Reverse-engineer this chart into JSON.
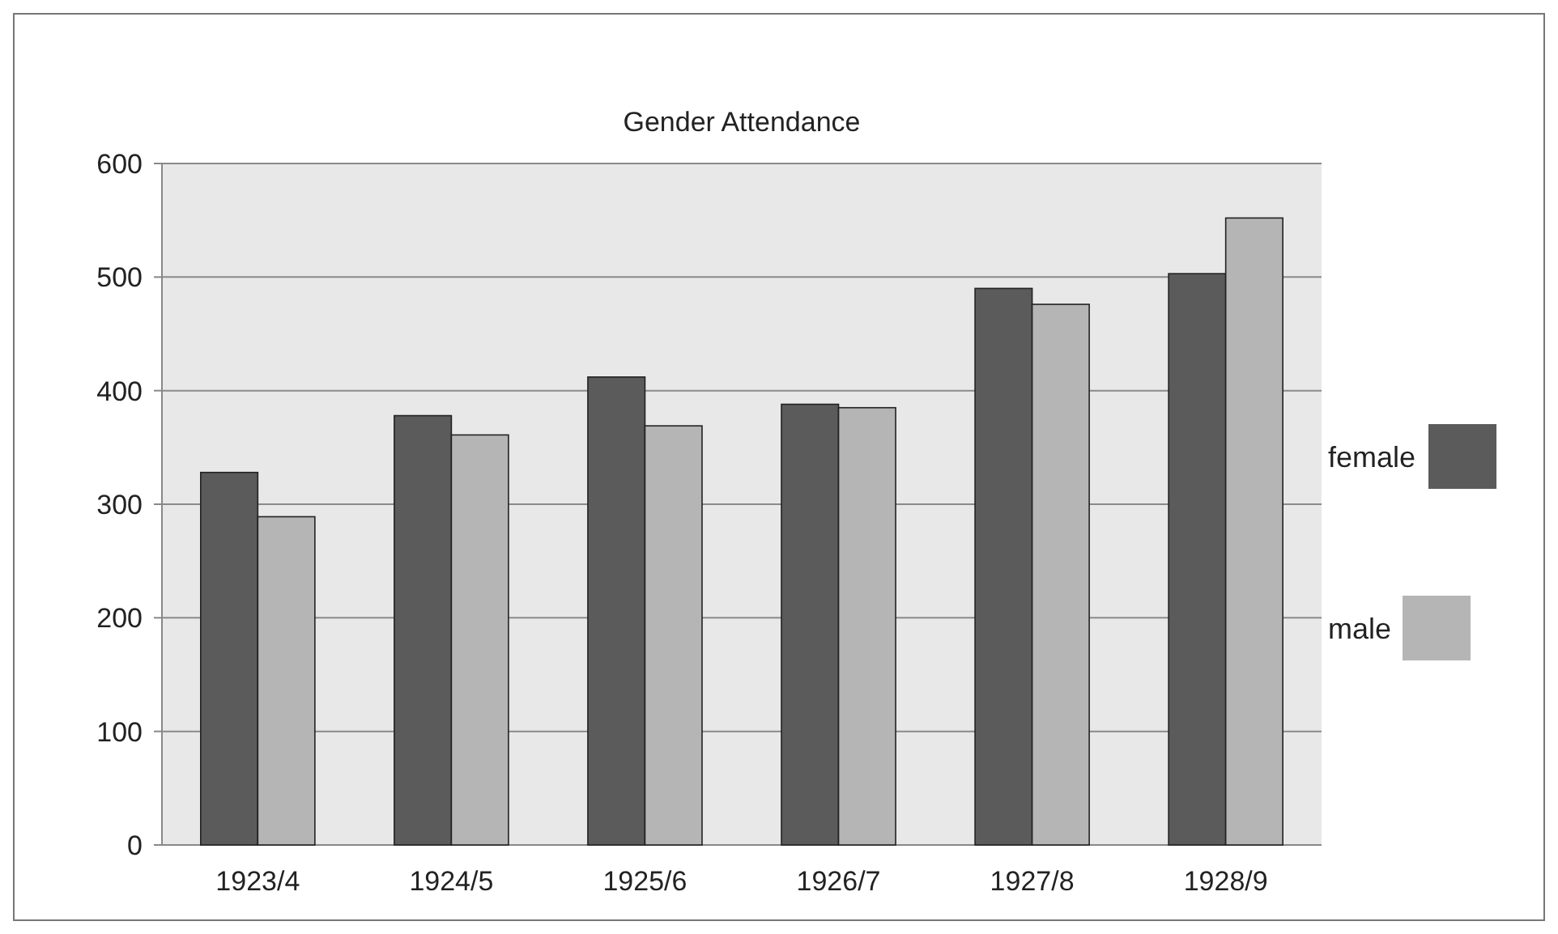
{
  "chart_data": {
    "type": "bar",
    "title": "Gender Attendance",
    "categories": [
      "1923/4",
      "1924/5",
      "1925/6",
      "1926/7",
      "1927/8",
      "1928/9"
    ],
    "series": [
      {
        "name": "female",
        "color": "#5b5b5b",
        "values": [
          328,
          378,
          412,
          388,
          490,
          503
        ]
      },
      {
        "name": "male",
        "color": "#b5b5b5",
        "values": [
          289,
          361,
          369,
          385,
          476,
          552
        ]
      }
    ],
    "ylim": [
      0,
      600
    ],
    "yticks": [
      0,
      100,
      200,
      300,
      400,
      500,
      600
    ],
    "grid": "y",
    "legend": "right"
  }
}
